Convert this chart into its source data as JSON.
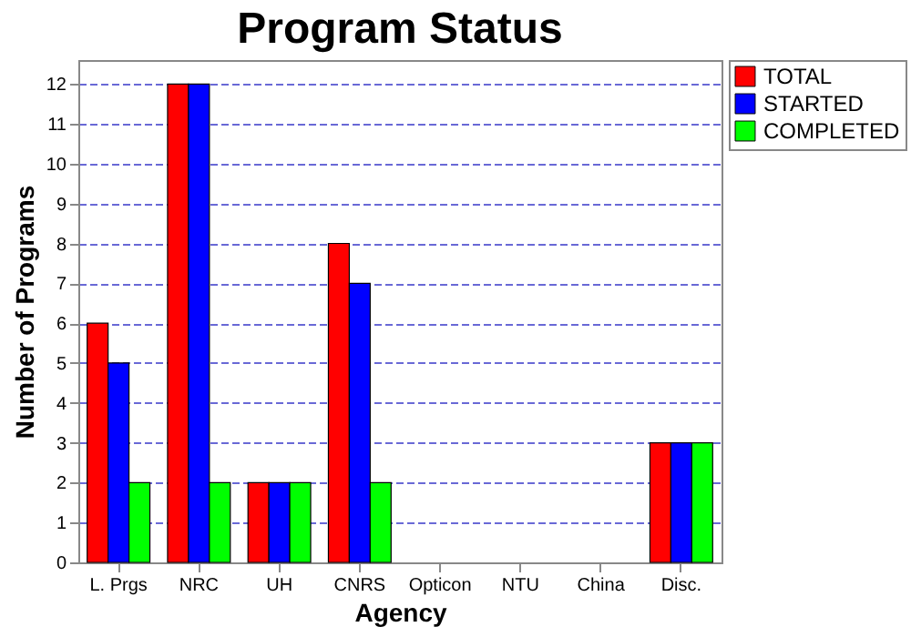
{
  "chart_data": {
    "type": "bar",
    "title": "Program Status",
    "xlabel": "Agency",
    "ylabel": "Number of Programs",
    "categories": [
      "L. Prgs",
      "NRC",
      "UH",
      "CNRS",
      "Opticon",
      "NTU",
      "China",
      "Disc."
    ],
    "series": [
      {
        "name": "TOTAL",
        "color": "#ff0000",
        "values": [
          6,
          12,
          2,
          8,
          0,
          0,
          0,
          3
        ]
      },
      {
        "name": "STARTED",
        "color": "#0000ff",
        "values": [
          5,
          12,
          2,
          7,
          0,
          0,
          0,
          3
        ]
      },
      {
        "name": "COMPLETED",
        "color": "#00ff00",
        "values": [
          2,
          2,
          2,
          2,
          0,
          0,
          0,
          3
        ]
      }
    ],
    "ylim": [
      0,
      12.6
    ],
    "yticks": [
      0,
      1,
      2,
      3,
      4,
      5,
      6,
      7,
      8,
      9,
      10,
      11,
      12
    ],
    "grid": "y",
    "legend": "right"
  }
}
